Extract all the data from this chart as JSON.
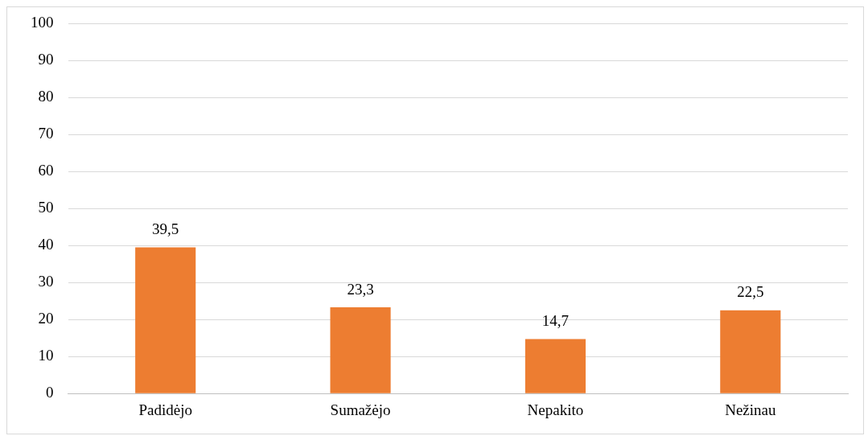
{
  "chart_data": {
    "type": "bar",
    "categories": [
      "Padidėjo",
      "Sumažėjo",
      "Nepakito",
      "Nežinau"
    ],
    "values": [
      39.5,
      23.3,
      14.7,
      22.5
    ],
    "value_labels": [
      "39,5",
      "23,3",
      "14,7",
      "22,5"
    ],
    "color": "#ed7d31",
    "ylim": [
      0,
      100
    ],
    "yticks": [
      0,
      10,
      20,
      30,
      40,
      50,
      60,
      70,
      80,
      90,
      100
    ],
    "grid": "y",
    "legend": false
  }
}
